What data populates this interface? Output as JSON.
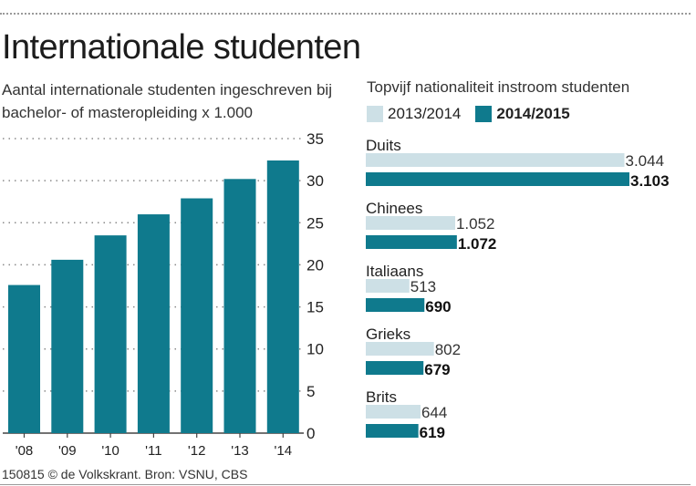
{
  "title": "Internationale studenten",
  "colors": {
    "light": "#cde0e6",
    "dark": "#0f7a8d",
    "text": "#222222",
    "grid": "#8a8a8a"
  },
  "footer": "150815 © de Volkskrant. Bron: VSNU, CBS",
  "chart_data": [
    {
      "type": "bar",
      "subtitle": "Aantal internationale studenten ingeschreven bij bachelor- of masteropleiding  x 1.000",
      "categories": [
        "'08",
        "'09",
        "'10",
        "'11",
        "'12",
        "'13",
        "'14"
      ],
      "values": [
        17.6,
        20.6,
        23.5,
        26.0,
        27.9,
        30.2,
        32.4
      ],
      "ylim": [
        0,
        35
      ],
      "yticks": [
        "0",
        "5",
        "10",
        "15",
        "20",
        "25",
        "30",
        "35"
      ],
      "grid": true,
      "axis_side": "right"
    },
    {
      "type": "bar",
      "orientation": "horizontal",
      "subtitle": "Topvijf nationaliteit instroom studenten",
      "categories": [
        "Duits",
        "Chinees",
        "Italiaans",
        "Grieks",
        "Brits"
      ],
      "series": [
        {
          "name": "2013/2014",
          "values": [
            3044,
            1052,
            513,
            802,
            644
          ],
          "labels": [
            "3.044",
            "1.052",
            "513",
            "802",
            "644"
          ]
        },
        {
          "name": "2014/2015",
          "values": [
            3103,
            1072,
            690,
            679,
            619
          ],
          "labels": [
            "3.103",
            "1.072",
            "690",
            "679",
            "619"
          ]
        }
      ],
      "legend": "top"
    }
  ]
}
